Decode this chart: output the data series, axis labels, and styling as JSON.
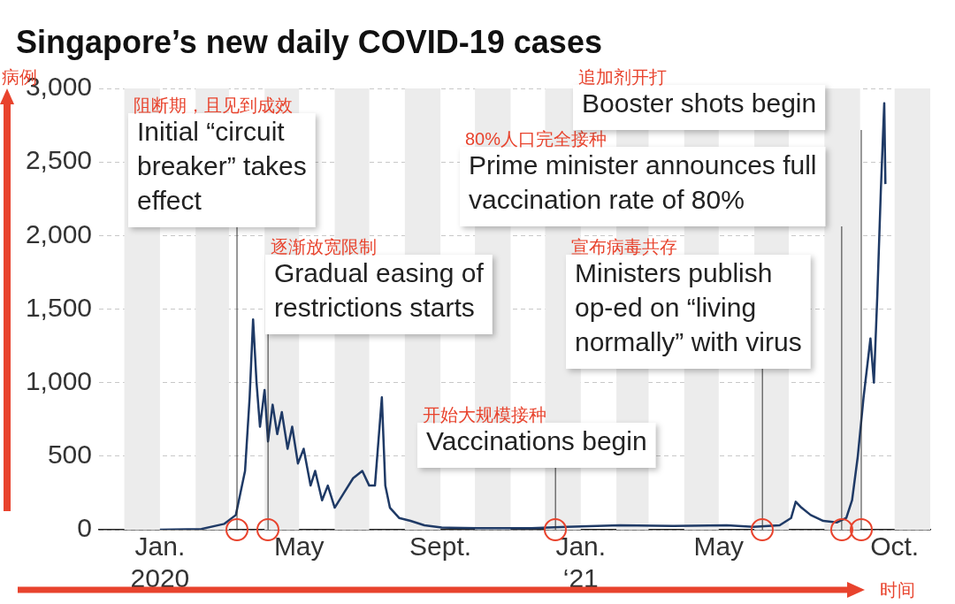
{
  "chart_data": {
    "type": "line",
    "title": "Singapore’s new daily COVID-19 cases",
    "xlabel": "时间",
    "ylabel": "病例",
    "xlim": [
      "2019-11-09",
      "2021-11-01"
    ],
    "xticks": [
      {
        "value": "2020-01-01",
        "label": "Jan.\n2020"
      },
      {
        "value": "2020-05-01",
        "label": "May"
      },
      {
        "value": "2020-09-01",
        "label": "Sept."
      },
      {
        "value": "2021-01-01",
        "label": "Jan.\n‘21"
      },
      {
        "value": "2021-05-01",
        "label": "May"
      },
      {
        "value": "2021-10-01",
        "label": "Oct."
      }
    ],
    "ylim": [
      0,
      3000
    ],
    "yticks": [
      0,
      500,
      {
        "value": 1000,
        "label": "1,000"
      },
      {
        "value": 1500,
        "label": "1,500"
      },
      {
        "value": 2000,
        "label": "2,000"
      },
      {
        "value": 2500,
        "label": "2,500"
      },
      {
        "value": 3000,
        "label": "3,000"
      }
    ],
    "grid": "y",
    "legend": false,
    "marker": "none",
    "line_style": "solid",
    "series": [
      {
        "color": "#1f3a66",
        "x": [
          "2020-01-01",
          "2020-02-06",
          "2020-02-26",
          "2020-03-07",
          "2020-03-15",
          "2020-03-19",
          "2020-03-22",
          "2020-03-25",
          "2020-03-28",
          "2020-04-01",
          "2020-04-04",
          "2020-04-08",
          "2020-04-12",
          "2020-04-16",
          "2020-04-21",
          "2020-04-25",
          "2020-04-30",
          "2020-05-05",
          "2020-05-11",
          "2020-05-15",
          "2020-05-21",
          "2020-05-26",
          "2020-06-01",
          "2020-06-09",
          "2020-06-17",
          "2020-06-25",
          "2020-07-01",
          "2020-07-06",
          "2020-07-09",
          "2020-07-12",
          "2020-07-15",
          "2020-07-19",
          "2020-07-27",
          "2020-08-06",
          "2020-08-18",
          "2020-09-02",
          "2020-10-03",
          "2020-11-19",
          "2020-12-20",
          "2021-02-04",
          "2021-03-22",
          "2021-05-08",
          "2021-05-31",
          "2021-06-23",
          "2021-07-03",
          "2021-07-07",
          "2021-07-12",
          "2021-07-20",
          "2021-07-31",
          "2021-08-12",
          "2021-08-20",
          "2021-08-25",
          "2021-08-30",
          "2021-09-04",
          "2021-09-10",
          "2021-09-13",
          "2021-09-16",
          "2021-09-19",
          "2021-09-22",
          "2021-09-23"
        ],
        "values": [
          0,
          5,
          40,
          100,
          400,
          900,
          1430,
          1000,
          700,
          950,
          600,
          850,
          650,
          800,
          550,
          700,
          450,
          550,
          300,
          400,
          200,
          300,
          150,
          250,
          350,
          400,
          300,
          300,
          600,
          900,
          300,
          150,
          80,
          60,
          30,
          15,
          10,
          10,
          20,
          30,
          25,
          30,
          20,
          30,
          80,
          190,
          150,
          100,
          60,
          50,
          80,
          200,
          500,
          900,
          1300,
          1000,
          1600,
          2300,
          2900,
          2350
        ]
      }
    ],
    "bands": [
      {
        "axis": "x",
        "from": "2019-12-01",
        "to": "2020-01-01",
        "color": "#ececec"
      },
      {
        "axis": "x",
        "from": "2020-02-01",
        "to": "2020-03-01",
        "color": "#ececec"
      },
      {
        "axis": "x",
        "from": "2020-04-01",
        "to": "2020-05-01",
        "color": "#ececec"
      },
      {
        "axis": "x",
        "from": "2020-06-01",
        "to": "2020-07-01",
        "color": "#ececec"
      },
      {
        "axis": "x",
        "from": "2020-08-01",
        "to": "2020-09-01",
        "color": "#ececec"
      },
      {
        "axis": "x",
        "from": "2020-10-01",
        "to": "2020-11-01",
        "color": "#ececec"
      },
      {
        "axis": "x",
        "from": "2020-12-01",
        "to": "2021-01-01",
        "color": "#ececec"
      },
      {
        "axis": "x",
        "from": "2021-02-01",
        "to": "2021-03-01",
        "color": "#ececec"
      },
      {
        "axis": "x",
        "from": "2021-04-01",
        "to": "2021-05-01",
        "color": "#ececec"
      },
      {
        "axis": "x",
        "from": "2021-06-01",
        "to": "2021-07-01",
        "color": "#ececec"
      },
      {
        "axis": "x",
        "from": "2021-08-01",
        "to": "2021-09-01",
        "color": "#ececec"
      },
      {
        "axis": "x",
        "from": "2021-10-01",
        "to": "2021-11-01",
        "color": "#ececec"
      }
    ],
    "ref_lines": [
      {
        "axis": "x",
        "value": "2020-03-08",
        "label": "Initial “circuit breaker” takes effect",
        "color": "#333333"
      },
      {
        "axis": "x",
        "value": "2020-04-04",
        "label": "Gradual easing of restrictions starts",
        "color": "#333333"
      },
      {
        "axis": "x",
        "value": "2020-12-10",
        "label": "Vaccinations begin",
        "color": "#333333"
      },
      {
        "axis": "x",
        "value": "2021-06-08",
        "label": "Ministers publish op-ed on “living normally” with virus",
        "color": "#333333"
      },
      {
        "axis": "x",
        "value": "2021-08-16",
        "label": "Prime minister announces full vaccination rate of 80%",
        "color": "#333333"
      },
      {
        "axis": "x",
        "value": "2021-09-02",
        "label": "Booster shots begin",
        "color": "#333333"
      }
    ],
    "annotations": [
      "阻断期，且见到成效",
      "逐渐放宽限制",
      "开始大规模接种",
      "宣布病毒共存",
      "80%人口完全接种",
      "追加剂开打"
    ]
  }
}
